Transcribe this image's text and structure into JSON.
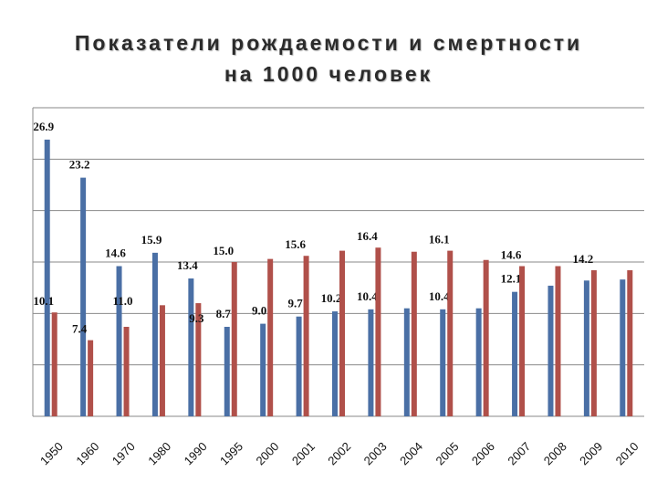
{
  "title_line1": "Показатели рождаемости и смертности",
  "title_line2": "на 1000 человек",
  "chart_data": {
    "type": "bar",
    "title": "Показатели рождаемости и смертности на 1000 человек",
    "categories": [
      "1950",
      "1960",
      "1970",
      "1980",
      "1990",
      "1995",
      "2000",
      "2001",
      "2002",
      "2003",
      "2004",
      "2005",
      "2006",
      "2007",
      "2008",
      "2009",
      "2010"
    ],
    "series": [
      {
        "color": "#4a6fa5",
        "values": [
          26.9,
          23.2,
          14.6,
          15.9,
          13.4,
          8.7,
          9.0,
          9.7,
          10.2,
          10.4,
          10.5,
          10.4,
          10.5,
          12.1,
          12.7,
          13.2,
          13.3
        ],
        "labels": [
          "26.9",
          "23.2",
          "14.6",
          "15.9",
          "13.4",
          "8.7",
          "9.0",
          "9.7",
          "10.2",
          "10.4",
          "",
          "10.4",
          "",
          "12.1",
          "",
          "",
          ""
        ]
      },
      {
        "color": "#b0504a",
        "values": [
          10.1,
          7.4,
          8.7,
          10.8,
          11.0,
          15.0,
          15.3,
          15.6,
          16.1,
          16.4,
          16.0,
          16.1,
          15.2,
          14.6,
          14.6,
          14.2,
          14.2
        ],
        "labels": [
          "10.1",
          "7.4",
          "",
          "",
          "",
          "15.0",
          "",
          "15.6",
          "",
          "16.4",
          "",
          "16.1",
          "",
          "14.6",
          "",
          "14.2",
          ""
        ]
      }
    ],
    "extra_labels": [
      "11.0",
      "9.3"
    ],
    "ylim": [
      0,
      30
    ],
    "grid": true,
    "legend": "none"
  }
}
